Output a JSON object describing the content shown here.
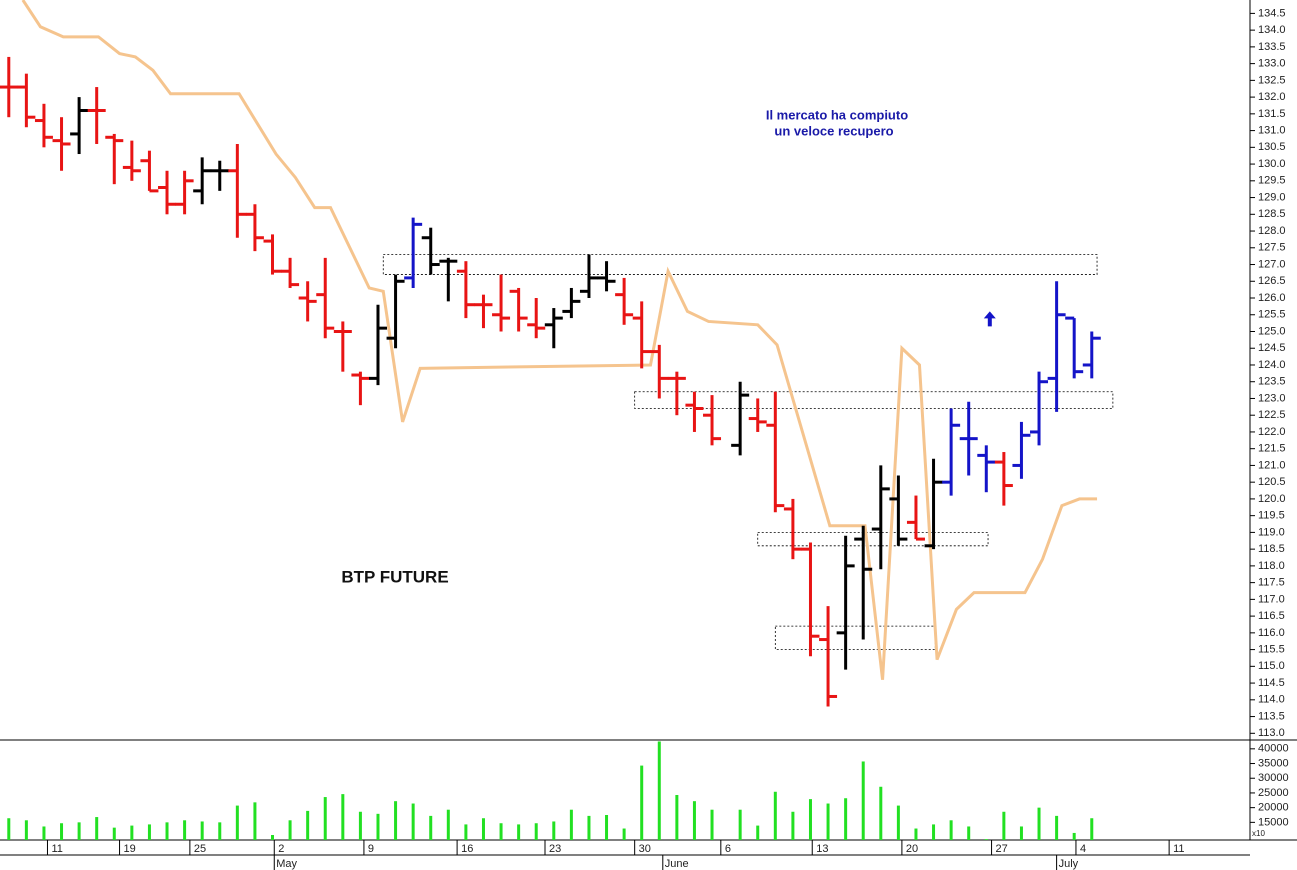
{
  "chart_data": [
    {
      "type": "ohlc",
      "title": "BTP FUTURE",
      "annotations": [
        "Il mercato ha compiuto",
        "un veloce recupero"
      ],
      "xlim": [
        -0.5,
        70.6
      ],
      "ylim": [
        112.8,
        134.9
      ],
      "yticks": [
        {
          "value": 113,
          "label": "113.0"
        },
        113.5,
        {
          "value": 114,
          "label": "114.0"
        },
        114.5,
        {
          "value": 115,
          "label": "115.0"
        },
        115.5,
        {
          "value": 116,
          "label": "116.0"
        },
        116.5,
        {
          "value": 117,
          "label": "117.0"
        },
        117.5,
        {
          "value": 118,
          "label": "118.0"
        },
        118.5,
        {
          "value": 119,
          "label": "119.0"
        },
        119.5,
        {
          "value": 120,
          "label": "120.0"
        },
        120.5,
        {
          "value": 121,
          "label": "121.0"
        },
        121.5,
        {
          "value": 122,
          "label": "122.0"
        },
        122.5,
        {
          "value": 123,
          "label": "123.0"
        },
        123.5,
        {
          "value": 124,
          "label": "124.0"
        },
        124.5,
        {
          "value": 125,
          "label": "125.0"
        },
        125.5,
        {
          "value": 126,
          "label": "126.0"
        },
        126.5,
        {
          "value": 127,
          "label": "127.0"
        },
        127.5,
        {
          "value": 128,
          "label": "128.0"
        },
        128.5,
        {
          "value": 129,
          "label": "129.0"
        },
        129.5,
        {
          "value": 130,
          "label": "130.0"
        },
        130.5,
        {
          "value": 131,
          "label": "131.0"
        },
        131.5,
        {
          "value": 132,
          "label": "132.0"
        },
        132.5,
        {
          "value": 133,
          "label": "133.0"
        },
        133.5,
        {
          "value": 134,
          "label": "134.0"
        },
        134.5
      ],
      "x": [
        0,
        1,
        2,
        3,
        4,
        5,
        6,
        7,
        8,
        9,
        10,
        11,
        12,
        13,
        14,
        15,
        16,
        17,
        18,
        19,
        20,
        21,
        22,
        23,
        24,
        25,
        26,
        27,
        28,
        29,
        30,
        31,
        32,
        33,
        34,
        35,
        36,
        37,
        38,
        39,
        40,
        41.6,
        42.6,
        43.6,
        44.6,
        45.6,
        46.6,
        47.6,
        48.6,
        49.6,
        50.6,
        51.6,
        52.6,
        53.6,
        54.6,
        55.6,
        56.6,
        57.6,
        58.6,
        59.6,
        60.6,
        61.6
      ],
      "open": [
        132.3,
        132.3,
        131.3,
        130.7,
        130.9,
        131.6,
        130.8,
        129.9,
        130.1,
        129.3,
        128.8,
        129.2,
        129.8,
        129.8,
        128.5,
        127.7,
        126.8,
        126.0,
        126.1,
        125.0,
        123.7,
        123.6,
        124.8,
        126.6,
        127.8,
        127.1,
        126.8,
        125.8,
        125.5,
        126.2,
        125.2,
        125.2,
        125.6,
        126.2,
        126.6,
        126.1,
        125.4,
        124.4,
        123.6,
        122.8,
        122.5,
        121.6,
        122.4,
        122.2,
        119.7,
        118.5,
        115.8,
        116.0,
        118.8,
        119.1,
        120.0,
        119.3,
        118.6,
        120.5,
        121.8,
        121.3,
        121.1,
        121.0,
        122.0,
        123.6,
        125.4,
        124.0
      ],
      "high": [
        133.2,
        132.7,
        131.8,
        131.4,
        132.0,
        132.3,
        130.9,
        130.7,
        130.4,
        129.8,
        129.8,
        130.2,
        130.1,
        130.6,
        128.8,
        127.9,
        127.2,
        126.5,
        127.2,
        125.3,
        123.8,
        125.8,
        126.7,
        128.4,
        128.1,
        127.2,
        127.1,
        126.1,
        126.7,
        126.3,
        126.0,
        125.7,
        126.3,
        127.3,
        127.1,
        126.6,
        125.9,
        124.6,
        123.8,
        123.2,
        123.1,
        123.5,
        123.0,
        123.2,
        120.0,
        118.7,
        116.8,
        118.9,
        119.2,
        121.0,
        120.7,
        120.1,
        121.2,
        122.7,
        122.9,
        121.6,
        121.4,
        122.3,
        123.8,
        126.5,
        125.4,
        125.0
      ],
      "low": [
        131.4,
        131.1,
        130.5,
        129.8,
        130.3,
        130.6,
        129.4,
        129.5,
        129.2,
        128.5,
        128.5,
        128.8,
        129.2,
        127.8,
        127.4,
        126.7,
        126.3,
        125.3,
        124.8,
        123.8,
        122.8,
        123.4,
        124.5,
        126.3,
        126.7,
        125.9,
        125.4,
        125.1,
        125.0,
        125.0,
        124.8,
        124.5,
        125.4,
        126.0,
        126.2,
        125.2,
        123.9,
        123.0,
        122.5,
        122.0,
        121.6,
        121.3,
        122.0,
        119.6,
        118.2,
        115.3,
        113.8,
        114.9,
        115.8,
        117.9,
        118.6,
        118.8,
        118.5,
        120.1,
        120.7,
        120.2,
        119.8,
        120.6,
        121.6,
        122.6,
        123.6,
        123.6
      ],
      "close": [
        132.3,
        131.4,
        130.8,
        130.6,
        131.6,
        131.6,
        130.7,
        129.8,
        129.2,
        128.8,
        129.5,
        129.8,
        129.8,
        128.5,
        127.8,
        126.8,
        126.4,
        125.9,
        125.1,
        125.0,
        123.6,
        125.1,
        126.5,
        128.2,
        127.0,
        127.1,
        125.8,
        125.8,
        125.4,
        125.4,
        125.1,
        125.4,
        125.9,
        126.6,
        126.5,
        125.5,
        124.4,
        123.6,
        123.6,
        122.7,
        121.8,
        123.1,
        122.3,
        119.8,
        118.5,
        115.9,
        114.1,
        118.0,
        117.9,
        120.3,
        118.8,
        118.8,
        120.5,
        122.2,
        121.8,
        121.1,
        120.4,
        121.9,
        123.5,
        125.5,
        123.8,
        124.8
      ],
      "bar_colors": [
        "#e81414",
        "#e81414",
        "#e81414",
        "#e81414",
        "#000000",
        "#e81414",
        "#e81414",
        "#e81414",
        "#e81414",
        "#e81414",
        "#e81414",
        "#000000",
        "#000000",
        "#e81414",
        "#e81414",
        "#e81414",
        "#e81414",
        "#e81414",
        "#e81414",
        "#e81414",
        "#e81414",
        "#000000",
        "#000000",
        "#1414c8",
        "#000000",
        "#000000",
        "#e81414",
        "#e81414",
        "#e81414",
        "#e81414",
        "#e81414",
        "#000000",
        "#000000",
        "#000000",
        "#000000",
        "#e81414",
        "#e81414",
        "#e81414",
        "#e81414",
        "#e81414",
        "#e81414",
        "#000000",
        "#e81414",
        "#e81414",
        "#e81414",
        "#e81414",
        "#e81414",
        "#000000",
        "#000000",
        "#000000",
        "#000000",
        "#e81414",
        "#000000",
        "#1414c8",
        "#1414c8",
        "#1414c8",
        "#e81414",
        "#1414c8",
        "#1414c8",
        "#1414c8",
        "#1414c8",
        "#1414c8"
      ],
      "lines": [
        {
          "color": "#f5c48e",
          "x": [
            0.8,
            1.8,
            3.1,
            5.1,
            6.3,
            7.2,
            8.2,
            9.2,
            13.1,
            15.2,
            16.3,
            17.4,
            18.3,
            20.5,
            21.3,
            22.4,
            23.4,
            36.5,
            37.5,
            38.6,
            39.8,
            42.6,
            43.7,
            46.7,
            48.7,
            49.7,
            50.8,
            51.8,
            52.8,
            53.9,
            54.9,
            57.8,
            58.8,
            59.9,
            60.9,
            61.9
          ],
          "values": [
            134.9,
            134.1,
            133.8,
            133.8,
            133.3,
            133.2,
            132.8,
            132.1,
            132.1,
            130.3,
            129.6,
            128.7,
            128.7,
            126.3,
            126.2,
            122.3,
            123.9,
            124.0,
            126.8,
            125.6,
            125.3,
            125.2,
            124.6,
            119.2,
            119.2,
            114.6,
            124.5,
            124.0,
            115.2,
            116.7,
            117.2,
            117.2,
            118.2,
            119.8,
            120.0,
            120.0
          ]
        }
      ],
      "zones": [
        {
          "x0": 21.3,
          "x1": 61.9,
          "y0": 126.7,
          "y1": 127.3
        },
        {
          "x0": 35.6,
          "x1": 62.8,
          "y0": 122.7,
          "y1": 123.2
        },
        {
          "x0": 42.6,
          "x1": 55.7,
          "y0": 118.6,
          "y1": 119.0
        },
        {
          "x0": 43.6,
          "x1": 52.7,
          "y0": 115.5,
          "y1": 116.2
        }
      ],
      "arrow": {
        "x": 55.8,
        "y": 125.6,
        "color": "#1414c8"
      }
    },
    {
      "type": "bar",
      "color": "#22e022",
      "axis_note": "x10",
      "xlim": [
        -0.5,
        70.6
      ],
      "ylim": [
        9000,
        43000
      ],
      "yticks": [
        15000,
        20000,
        25000,
        30000,
        35000,
        40000
      ],
      "x": [
        0,
        1,
        2,
        3,
        4,
        5,
        6,
        7,
        8,
        9,
        10,
        11,
        12,
        13,
        14,
        15,
        16,
        17,
        18,
        19,
        20,
        21,
        22,
        23,
        24,
        25,
        26,
        27,
        28,
        29,
        30,
        31,
        32,
        33,
        34,
        35,
        36,
        37,
        38,
        39,
        40,
        41.6,
        42.6,
        43.6,
        44.6,
        45.6,
        46.6,
        47.6,
        48.6,
        49.6,
        50.6,
        51.6,
        52.6,
        53.6,
        54.6,
        55.6,
        56.6,
        57.6,
        58.6,
        59.6,
        60.6,
        61.6
      ],
      "values": [
        16400,
        15700,
        13600,
        14700,
        15000,
        16800,
        13200,
        13900,
        14300,
        15000,
        15700,
        15300,
        15000,
        20700,
        21800,
        10700,
        15700,
        18900,
        23600,
        24600,
        18600,
        17900,
        22200,
        21400,
        17200,
        19300,
        14300,
        16400,
        14700,
        14300,
        14700,
        15300,
        19300,
        17200,
        17500,
        12900,
        34300,
        42500,
        24300,
        22200,
        19300,
        19300,
        13900,
        25400,
        18600,
        22900,
        21400,
        23200,
        35700,
        27100,
        20700,
        12900,
        14300,
        15700,
        13600,
        9300,
        18600,
        13600,
        20000,
        17200,
        11400,
        16400
      ],
      "xticks": [
        {
          "value": 2.2,
          "label": "11"
        },
        {
          "value": 6.3,
          "label": "19"
        },
        {
          "value": 10.3,
          "label": "25"
        },
        {
          "value": 15.1,
          "label": "2"
        },
        {
          "value": 20.2,
          "label": "9"
        },
        {
          "value": 25.5,
          "label": "16"
        },
        {
          "value": 30.5,
          "label": "23"
        },
        {
          "value": 35.6,
          "label": "30"
        },
        {
          "value": 40.5,
          "label": "6"
        },
        {
          "value": 45.7,
          "label": "13"
        },
        {
          "value": 50.8,
          "label": "20"
        },
        {
          "value": 55.9,
          "label": "27"
        },
        {
          "value": 60.7,
          "label": "4"
        },
        {
          "value": 66.0,
          "label": "11"
        }
      ],
      "months": [
        {
          "value": 15.1,
          "label": "May"
        },
        {
          "value": 37.2,
          "label": "June"
        },
        {
          "value": 59.6,
          "label": "July"
        }
      ]
    }
  ]
}
